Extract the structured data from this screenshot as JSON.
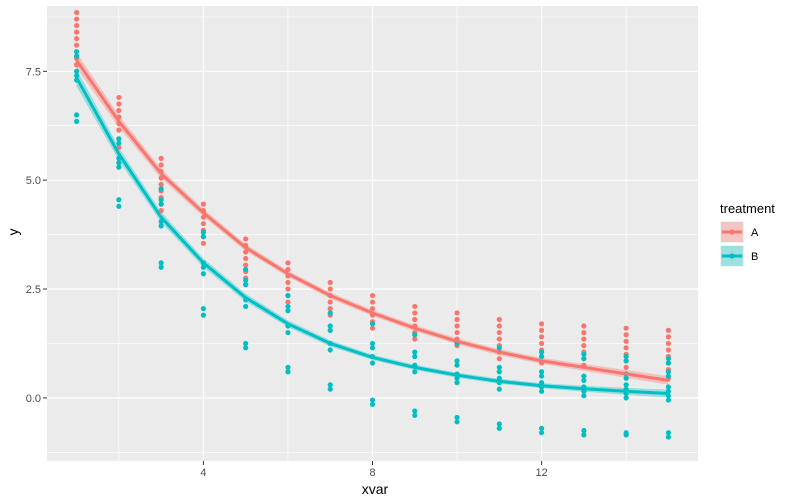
{
  "chart_data": {
    "type": "scatter",
    "xlabel": "xvar",
    "ylabel": "y",
    "xlim": [
      0.3,
      15.7
    ],
    "ylim": [
      -1.45,
      9.0
    ],
    "x_ticks": [
      4,
      8,
      12
    ],
    "x_minor_ticks": [
      2,
      6,
      10,
      14
    ],
    "y_ticks": [
      0.0,
      2.5,
      5.0,
      7.5
    ],
    "y_tick_labels": [
      "0.0",
      "2.5",
      "5.0",
      "7.5"
    ],
    "y_minor_ticks": [
      -1.25,
      1.25,
      3.75,
      6.25,
      8.75
    ],
    "grid": true,
    "legend": {
      "title": "treatment",
      "position": "right",
      "entries": [
        "A",
        "B"
      ]
    },
    "series": [
      {
        "name": "A",
        "color": "#F8766D",
        "ribbon_color": "#F8766D",
        "fit_x": [
          1,
          2,
          3,
          4,
          5,
          6,
          7,
          8,
          9,
          10,
          11,
          12,
          13,
          14,
          15
        ],
        "fit_y": [
          7.75,
          6.35,
          5.15,
          4.25,
          3.45,
          2.85,
          2.35,
          1.95,
          1.6,
          1.3,
          1.05,
          0.85,
          0.7,
          0.55,
          0.4
        ],
        "fit_se": [
          0.18,
          0.14,
          0.11,
          0.09,
          0.08,
          0.07,
          0.07,
          0.07,
          0.07,
          0.07,
          0.07,
          0.07,
          0.08,
          0.09,
          0.1
        ],
        "points": [
          {
            "x": 1,
            "y": [
              8.85,
              8.7,
              8.55,
              8.4,
              8.25,
              8.1,
              7.95,
              7.8,
              7.65
            ]
          },
          {
            "x": 2,
            "y": [
              6.9,
              6.75,
              6.6,
              6.45,
              6.3,
              6.15,
              5.95,
              5.75
            ]
          },
          {
            "x": 3,
            "y": [
              5.5,
              5.35,
              5.2,
              5.05,
              4.9,
              4.75,
              4.6,
              4.45,
              4.3
            ]
          },
          {
            "x": 4,
            "y": [
              4.45,
              4.3,
              4.15,
              4.0,
              3.85,
              3.7,
              3.55
            ]
          },
          {
            "x": 5,
            "y": [
              3.65,
              3.5,
              3.35,
              3.2,
              3.05,
              2.9,
              2.75,
              2.6
            ]
          },
          {
            "x": 6,
            "y": [
              3.1,
              2.95,
              2.8,
              2.65,
              2.5,
              2.35,
              2.2
            ]
          },
          {
            "x": 7,
            "y": [
              2.65,
              2.5,
              2.35,
              2.2,
              2.05,
              1.9
            ]
          },
          {
            "x": 8,
            "y": [
              2.35,
              2.2,
              2.05,
              1.9,
              1.75,
              1.6
            ]
          },
          {
            "x": 9,
            "y": [
              2.1,
              1.95,
              1.8,
              1.65,
              1.5,
              1.35
            ]
          },
          {
            "x": 10,
            "y": [
              1.95,
              1.8,
              1.65,
              1.5,
              1.35,
              1.2
            ]
          },
          {
            "x": 11,
            "y": [
              1.8,
              1.65,
              1.5,
              1.35,
              1.2,
              1.05,
              0.9
            ]
          },
          {
            "x": 12,
            "y": [
              1.7,
              1.55,
              1.4,
              1.25,
              1.1,
              0.95,
              0.8
            ]
          },
          {
            "x": 13,
            "y": [
              1.65,
              1.5,
              1.35,
              1.2,
              1.05,
              0.9,
              0.75
            ]
          },
          {
            "x": 14,
            "y": [
              1.6,
              1.45,
              1.3,
              1.15,
              1.0,
              0.85,
              0.7
            ]
          },
          {
            "x": 15,
            "y": [
              1.55,
              1.4,
              1.25,
              1.1,
              0.95,
              0.8,
              0.65,
              0.45
            ]
          }
        ]
      },
      {
        "name": "B",
        "color": "#00BFC4",
        "ribbon_color": "#00BFC4",
        "fit_x": [
          1,
          2,
          3,
          4,
          5,
          6,
          7,
          8,
          9,
          10,
          11,
          12,
          13,
          14,
          15
        ],
        "fit_y": [
          7.35,
          5.6,
          4.15,
          3.1,
          2.3,
          1.7,
          1.25,
          0.93,
          0.7,
          0.52,
          0.38,
          0.28,
          0.21,
          0.15,
          0.1
        ],
        "fit_se": [
          0.2,
          0.15,
          0.12,
          0.1,
          0.09,
          0.08,
          0.07,
          0.06,
          0.06,
          0.06,
          0.06,
          0.06,
          0.07,
          0.08,
          0.09
        ],
        "points": [
          {
            "x": 1,
            "y": [
              7.95,
              7.85,
              7.5,
              7.4,
              7.3,
              6.5,
              6.35
            ]
          },
          {
            "x": 2,
            "y": [
              5.95,
              5.85,
              5.5,
              5.4,
              5.3,
              4.55,
              4.4
            ]
          },
          {
            "x": 3,
            "y": [
              4.8,
              4.55,
              4.45,
              4.05,
              3.95,
              3.1,
              3.0
            ]
          },
          {
            "x": 4,
            "y": [
              3.8,
              3.7,
              3.1,
              3.0,
              2.85,
              2.05,
              1.9
            ]
          },
          {
            "x": 5,
            "y": [
              2.95,
              2.7,
              2.6,
              2.25,
              2.1,
              1.25,
              1.15
            ]
          },
          {
            "x": 6,
            "y": [
              2.35,
              2.1,
              2.0,
              1.65,
              1.5,
              0.7,
              0.6
            ]
          },
          {
            "x": 7,
            "y": [
              1.95,
              1.65,
              1.55,
              1.25,
              1.1,
              0.3,
              0.2
            ]
          },
          {
            "x": 8,
            "y": [
              1.7,
              1.25,
              1.15,
              0.95,
              0.8,
              -0.05,
              -0.15
            ]
          },
          {
            "x": 9,
            "y": [
              1.45,
              1.05,
              0.95,
              0.75,
              0.6,
              -0.3,
              -0.4
            ]
          },
          {
            "x": 10,
            "y": [
              1.25,
              0.85,
              0.75,
              0.55,
              0.45,
              0.35,
              -0.45,
              -0.55
            ]
          },
          {
            "x": 11,
            "y": [
              1.15,
              0.7,
              0.6,
              0.45,
              0.35,
              0.2,
              -0.6,
              -0.7
            ]
          },
          {
            "x": 12,
            "y": [
              1.05,
              0.95,
              0.6,
              0.5,
              0.35,
              0.25,
              0.15,
              -0.7,
              -0.8
            ]
          },
          {
            "x": 13,
            "y": [
              1.0,
              0.9,
              0.5,
              0.4,
              0.25,
              0.15,
              0.05,
              -0.75,
              -0.85
            ]
          },
          {
            "x": 14,
            "y": [
              0.95,
              0.85,
              0.55,
              0.45,
              0.3,
              0.2,
              0.1,
              0.0,
              -0.8,
              -0.85
            ]
          },
          {
            "x": 15,
            "y": [
              0.9,
              0.8,
              0.6,
              0.5,
              0.25,
              0.15,
              0.05,
              -0.05,
              -0.8,
              -0.9
            ]
          }
        ]
      }
    ]
  }
}
